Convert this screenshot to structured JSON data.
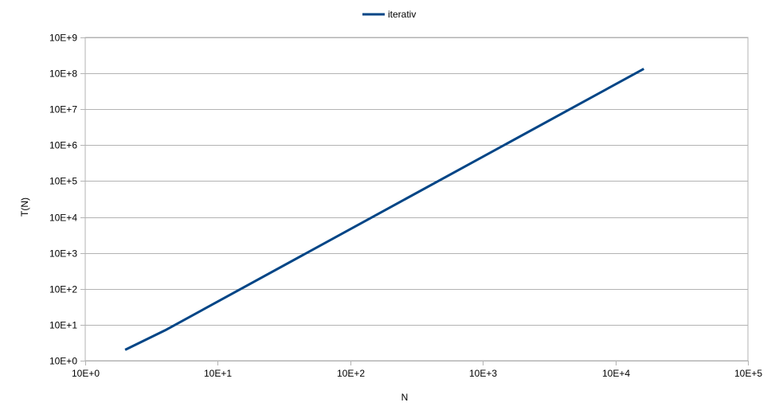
{
  "chart_data": {
    "type": "line",
    "xlabel": "N",
    "ylabel": "T(N)",
    "xscale": "log",
    "yscale": "log",
    "xlim": [
      1,
      100000
    ],
    "ylim": [
      1,
      1000000000
    ],
    "x_ticks": [
      {
        "value": 1,
        "label": "10E+0"
      },
      {
        "value": 10,
        "label": "10E+1"
      },
      {
        "value": 100,
        "label": "10E+2"
      },
      {
        "value": 1000,
        "label": "10E+3"
      },
      {
        "value": 10000,
        "label": "10E+4"
      },
      {
        "value": 100000,
        "label": "10E+5"
      }
    ],
    "y_ticks": [
      {
        "value": 1,
        "label": "10E+0"
      },
      {
        "value": 10,
        "label": "10E+1"
      },
      {
        "value": 100,
        "label": "10E+2"
      },
      {
        "value": 1000,
        "label": "10E+3"
      },
      {
        "value": 10000,
        "label": "10E+4"
      },
      {
        "value": 100000,
        "label": "10E+5"
      },
      {
        "value": 1000000,
        "label": "10E+6"
      },
      {
        "value": 10000000,
        "label": "10E+7"
      },
      {
        "value": 100000000,
        "label": "10E+8"
      },
      {
        "value": 1000000000,
        "label": "10E+9"
      }
    ],
    "grid": {
      "horizontal": true,
      "vertical": false
    },
    "legend_position": "top",
    "series": [
      {
        "name": "iterativ",
        "color": "#004586",
        "points": [
          {
            "x": 2,
            "y": 2
          },
          {
            "x": 4,
            "y": 7
          },
          {
            "x": 16384,
            "y": 134000000
          }
        ]
      }
    ]
  }
}
